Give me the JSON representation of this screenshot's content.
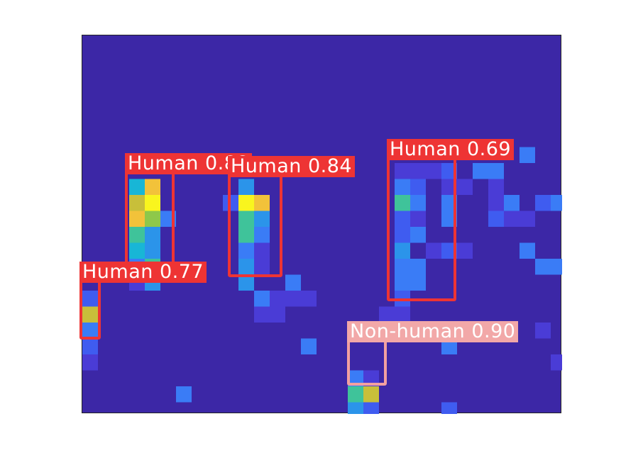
{
  "image": {
    "background_color": "#3c27a6",
    "grid_cols": 30,
    "grid_rows": 24,
    "colors": {
      "c1": "#4a3cd6",
      "c2": "#3f5cf0",
      "c3": "#3a7cf6",
      "c4": "#2b94ea",
      "c5": "#18b6d6",
      "c6": "#3fc39a",
      "c7": "#8ec84a",
      "c8": "#c8bf3a",
      "c9": "#f2c23a",
      "c10": "#f9f51e"
    },
    "cells": [
      [
        3,
        9,
        "c5"
      ],
      [
        4,
        9,
        "c9"
      ],
      [
        3,
        10,
        "c8"
      ],
      [
        4,
        10,
        "c10"
      ],
      [
        3,
        11,
        "c9"
      ],
      [
        4,
        11,
        "c7"
      ],
      [
        5,
        11,
        "c3"
      ],
      [
        3,
        12,
        "c6"
      ],
      [
        4,
        12,
        "c4"
      ],
      [
        3,
        13,
        "c5"
      ],
      [
        4,
        13,
        "c4"
      ],
      [
        3,
        14,
        "c3"
      ],
      [
        4,
        14,
        "c6"
      ],
      [
        3,
        15,
        "c1"
      ],
      [
        4,
        15,
        "c4"
      ],
      [
        10,
        9,
        "c4"
      ],
      [
        10,
        10,
        "c10"
      ],
      [
        11,
        10,
        "c9"
      ],
      [
        9,
        10,
        "c2"
      ],
      [
        10,
        11,
        "c6"
      ],
      [
        11,
        11,
        "c4"
      ],
      [
        10,
        12,
        "c6"
      ],
      [
        11,
        12,
        "c3"
      ],
      [
        10,
        13,
        "c3"
      ],
      [
        11,
        13,
        "c1"
      ],
      [
        10,
        14,
        "c4"
      ],
      [
        11,
        14,
        "c1"
      ],
      [
        10,
        15,
        "c4"
      ],
      [
        11,
        16,
        "c3"
      ],
      [
        13,
        15,
        "c3"
      ],
      [
        12,
        16,
        "c1"
      ],
      [
        13,
        16,
        "c1"
      ],
      [
        14,
        16,
        "c1"
      ],
      [
        11,
        17,
        "c1"
      ],
      [
        12,
        17,
        "c1"
      ],
      [
        0,
        16,
        "c2"
      ],
      [
        0,
        17,
        "c8"
      ],
      [
        0,
        18,
        "c3"
      ],
      [
        0,
        19,
        "c2"
      ],
      [
        0,
        20,
        "c1"
      ],
      [
        20,
        8,
        "c1"
      ],
      [
        21,
        8,
        "c1"
      ],
      [
        22,
        8,
        "c1"
      ],
      [
        23,
        8,
        "c2"
      ],
      [
        25,
        8,
        "c3"
      ],
      [
        26,
        8,
        "c3"
      ],
      [
        28,
        7,
        "c3"
      ],
      [
        20,
        9,
        "c3"
      ],
      [
        21,
        9,
        "c2"
      ],
      [
        23,
        9,
        "c1"
      ],
      [
        24,
        9,
        "c1"
      ],
      [
        26,
        9,
        "c1"
      ],
      [
        20,
        10,
        "c6"
      ],
      [
        21,
        10,
        "c3"
      ],
      [
        23,
        10,
        "c3"
      ],
      [
        26,
        10,
        "c1"
      ],
      [
        27,
        10,
        "c3"
      ],
      [
        29,
        10,
        "c2"
      ],
      [
        30,
        10,
        "c3"
      ],
      [
        20,
        11,
        "c2"
      ],
      [
        21,
        11,
        "c1"
      ],
      [
        23,
        11,
        "c3"
      ],
      [
        26,
        11,
        "c2"
      ],
      [
        27,
        11,
        "c1"
      ],
      [
        28,
        11,
        "c1"
      ],
      [
        20,
        12,
        "c2"
      ],
      [
        21,
        12,
        "c3"
      ],
      [
        20,
        13,
        "c4"
      ],
      [
        22,
        13,
        "c1"
      ],
      [
        23,
        13,
        "c2"
      ],
      [
        24,
        13,
        "c1"
      ],
      [
        28,
        13,
        "c3"
      ],
      [
        20,
        14,
        "c3"
      ],
      [
        21,
        14,
        "c3"
      ],
      [
        29,
        14,
        "c3"
      ],
      [
        30,
        14,
        "c3"
      ],
      [
        20,
        15,
        "c3"
      ],
      [
        21,
        15,
        "c3"
      ],
      [
        20,
        16,
        "c2"
      ],
      [
        20,
        17,
        "c1"
      ],
      [
        19,
        17,
        "c1"
      ],
      [
        23,
        18,
        "c3"
      ],
      [
        29,
        18,
        "c1"
      ],
      [
        23,
        19,
        "c3"
      ],
      [
        14,
        19,
        "c3"
      ],
      [
        17,
        21,
        "c3"
      ],
      [
        18,
        21,
        "c1"
      ],
      [
        17,
        22,
        "c6"
      ],
      [
        18,
        22,
        "c8"
      ],
      [
        17,
        23,
        "c4"
      ],
      [
        18,
        23,
        "c2"
      ],
      [
        23,
        23,
        "c2"
      ],
      [
        30,
        20,
        "c1"
      ],
      [
        6,
        22,
        "c3"
      ]
    ]
  },
  "detections": [
    {
      "label": "Human 0.88",
      "style": "red"
    },
    {
      "label": "Human 0.84",
      "style": "red"
    },
    {
      "label": "Human 0.77",
      "style": "red"
    },
    {
      "label": "Human 0.69",
      "style": "red"
    },
    {
      "label": "Non-human 0.90",
      "style": "pink"
    }
  ],
  "colors": {
    "red": "#ee3434",
    "pink": "#f2a8a8"
  }
}
